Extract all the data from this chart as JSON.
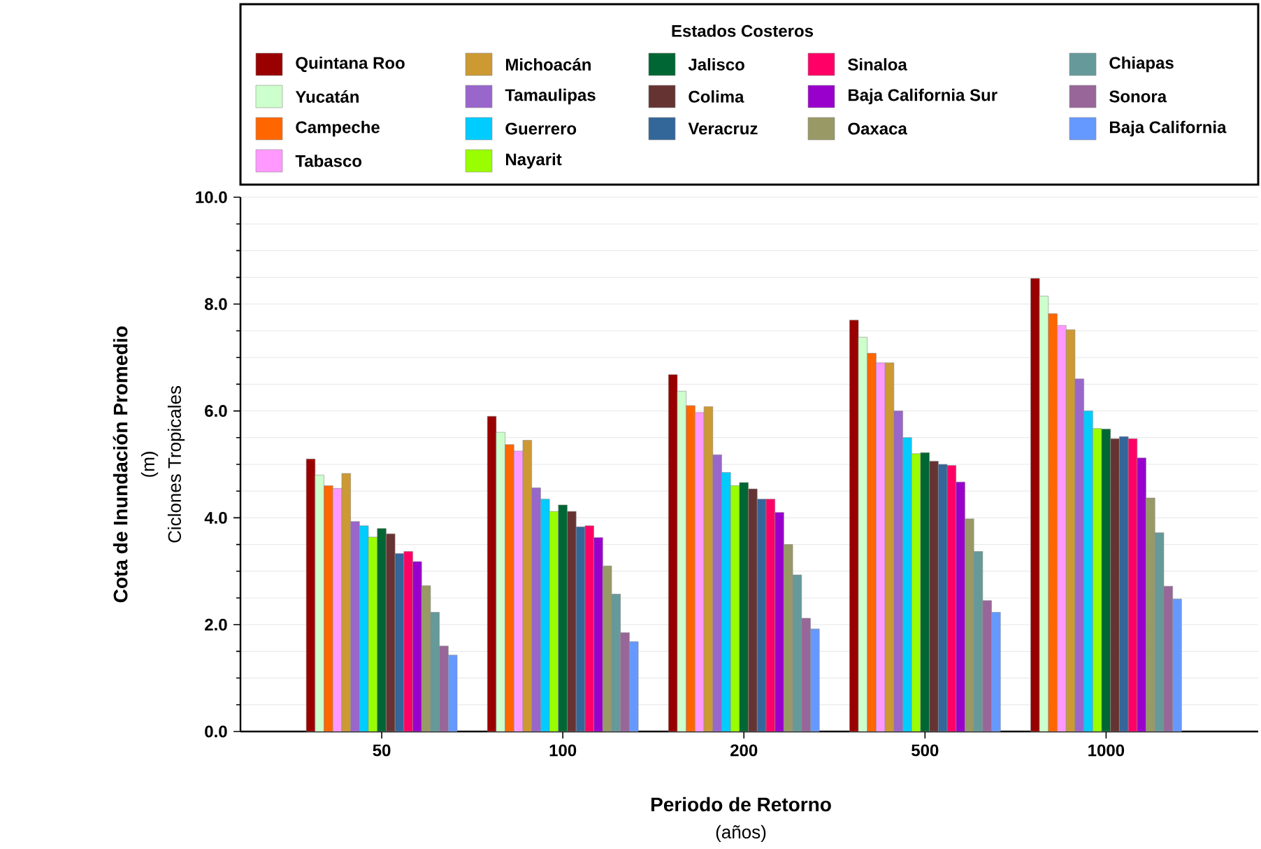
{
  "chart_data": {
    "type": "bar",
    "xlabel": "Periodo de Retorno",
    "ylabel": "Cota de Inundación Promedio",
    "legend_title": "Estados Costeros",
    "annotations": [
      "(m)",
      "Ciclones Tropicales",
      "(años)"
    ],
    "categories": [
      "50",
      "100",
      "200",
      "500",
      "1000"
    ],
    "ylim": [
      0,
      10
    ],
    "yticks": [
      {
        "value": 0,
        "label": "0.0"
      },
      {
        "value": 2,
        "label": "2.0"
      },
      {
        "value": 4,
        "label": "4.0"
      },
      {
        "value": 6,
        "label": "6.0"
      },
      {
        "value": 8,
        "label": "8.0"
      },
      {
        "value": 10,
        "label": "10.0"
      }
    ],
    "grid": "y",
    "legend": "top",
    "series": [
      {
        "name": "Quintana Roo",
        "color": "#990000",
        "values": [
          5.1,
          5.9,
          6.68,
          7.7,
          8.48
        ]
      },
      {
        "name": "Yucatán",
        "color": "#ccffcc",
        "values": [
          4.8,
          5.6,
          6.37,
          7.38,
          8.15
        ]
      },
      {
        "name": "Campeche",
        "color": "#ff6600",
        "values": [
          4.6,
          5.37,
          6.1,
          7.08,
          7.82
        ]
      },
      {
        "name": "Tabasco",
        "color": "#ff99ff",
        "values": [
          4.55,
          5.25,
          5.97,
          6.9,
          7.6
        ]
      },
      {
        "name": "Michoacán",
        "color": "#cc9933",
        "values": [
          4.83,
          5.45,
          6.08,
          6.9,
          7.52
        ]
      },
      {
        "name": "Tamaulipas",
        "color": "#9966cc",
        "values": [
          3.93,
          4.56,
          5.18,
          6.0,
          6.6
        ]
      },
      {
        "name": "Guerrero",
        "color": "#00ccff",
        "values": [
          3.85,
          4.35,
          4.85,
          5.5,
          6.0
        ]
      },
      {
        "name": "Nayarit",
        "color": "#99ff00",
        "values": [
          3.64,
          4.12,
          4.6,
          5.2,
          5.67
        ]
      },
      {
        "name": "Jalisco",
        "color": "#006633",
        "values": [
          3.8,
          4.24,
          4.66,
          5.22,
          5.66
        ]
      },
      {
        "name": "Colima",
        "color": "#663333",
        "values": [
          3.7,
          4.12,
          4.54,
          5.06,
          5.48
        ]
      },
      {
        "name": "Veracruz",
        "color": "#336699",
        "values": [
          3.33,
          3.83,
          4.35,
          5.0,
          5.52
        ]
      },
      {
        "name": "Sinaloa",
        "color": "#ff0066",
        "values": [
          3.37,
          3.85,
          4.35,
          4.98,
          5.48
        ]
      },
      {
        "name": "Baja California Sur",
        "color": "#9900cc",
        "values": [
          3.18,
          3.63,
          4.1,
          4.67,
          5.12
        ]
      },
      {
        "name": "Oaxaca",
        "color": "#999966",
        "values": [
          2.73,
          3.1,
          3.5,
          3.98,
          4.37
        ]
      },
      {
        "name": "Chiapas",
        "color": "#669999",
        "values": [
          2.23,
          2.57,
          2.93,
          3.37,
          3.72
        ]
      },
      {
        "name": "Sonora",
        "color": "#996699",
        "values": [
          1.6,
          1.85,
          2.12,
          2.45,
          2.72
        ]
      },
      {
        "name": "Baja California",
        "color": "#6699ff",
        "values": [
          1.43,
          1.68,
          1.92,
          2.23,
          2.48
        ]
      }
    ]
  }
}
